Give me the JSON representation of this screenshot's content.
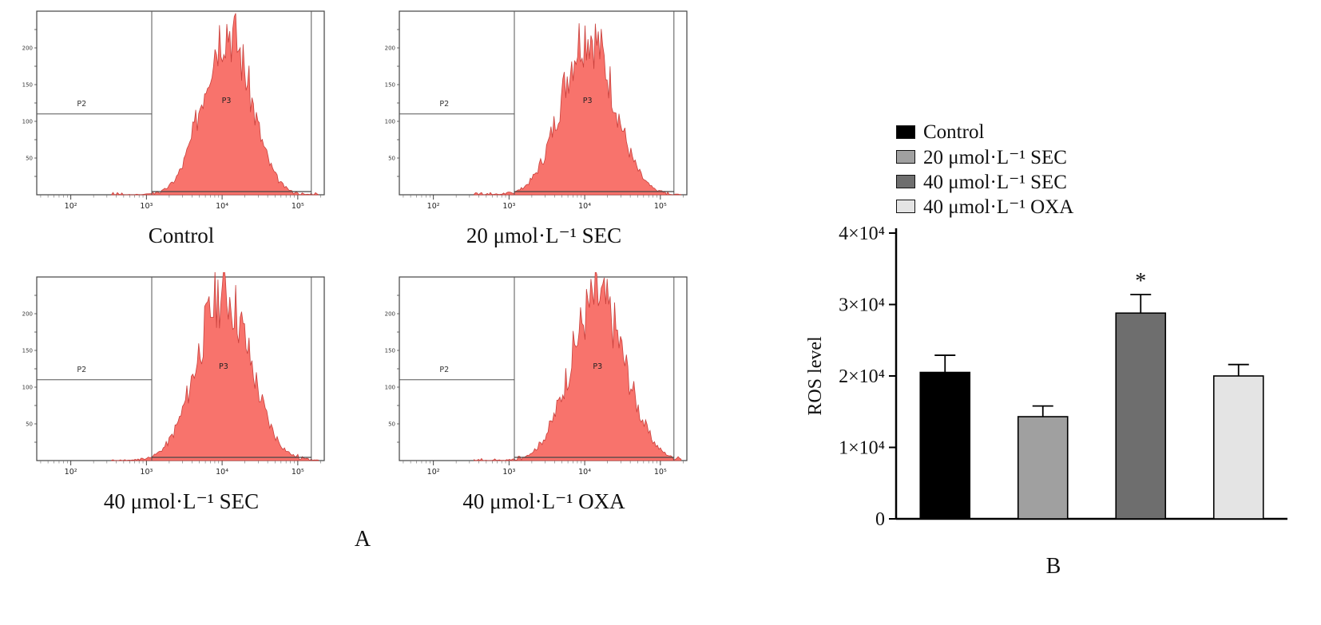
{
  "figure": {
    "panel_a_label": "A",
    "panel_b_label": "B"
  },
  "flow_plots": [
    {
      "label": "Control",
      "gates": {
        "left": "P2",
        "peak": "P3"
      }
    },
    {
      "label": "20 μmol·L⁻¹ SEC",
      "gates": {
        "left": "P2",
        "peak": "P3"
      }
    },
    {
      "label": "40 μmol·L⁻¹ SEC",
      "gates": {
        "left": "P2",
        "peak": "P3"
      }
    },
    {
      "label": "40 μmol·L⁻¹ OXA",
      "gates": {
        "left": "P2",
        "peak": "P3"
      }
    }
  ],
  "flow_axis": {
    "x_tick_labels": [
      "10²",
      "10³",
      "10⁴",
      "10⁵"
    ],
    "y_tick_labels": [
      "200",
      "150",
      "100",
      "50"
    ],
    "fill_color": "#f8736c",
    "outline_color": "#c9403c"
  },
  "chart_data": {
    "type": "bar",
    "categories": [
      "Control",
      "20 μmol·L⁻¹ SEC",
      "40 μmol·L⁻¹ SEC",
      "40 μmol·L⁻¹ OXA"
    ],
    "values": [
      20500,
      14300,
      28800,
      20000
    ],
    "errors_upper": [
      2400,
      1500,
      2600,
      1600
    ],
    "significance": [
      "",
      "",
      "*",
      ""
    ],
    "bar_colors": [
      "#000000",
      "#a0a0a0",
      "#6e6e6e",
      "#e4e4e4"
    ],
    "ylabel": "ROS level",
    "xlabel": "",
    "ylim": [
      0,
      40000
    ],
    "ytick_values": [
      0,
      10000,
      20000,
      30000,
      40000
    ],
    "ytick_labels": [
      "0",
      "1×10⁴",
      "2×10⁴",
      "3×10⁴",
      "4×10⁴"
    ],
    "grid": false,
    "legend_position": "top-left-of-plot",
    "legend": [
      {
        "label": "Control",
        "color": "#000000"
      },
      {
        "label": "20 μmol·L⁻¹ SEC",
        "color": "#a0a0a0"
      },
      {
        "label": "40 μmol·L⁻¹ SEC",
        "color": "#6e6e6e"
      },
      {
        "label": "40 μmol·L⁻¹ OXA",
        "color": "#e4e4e4"
      }
    ]
  }
}
